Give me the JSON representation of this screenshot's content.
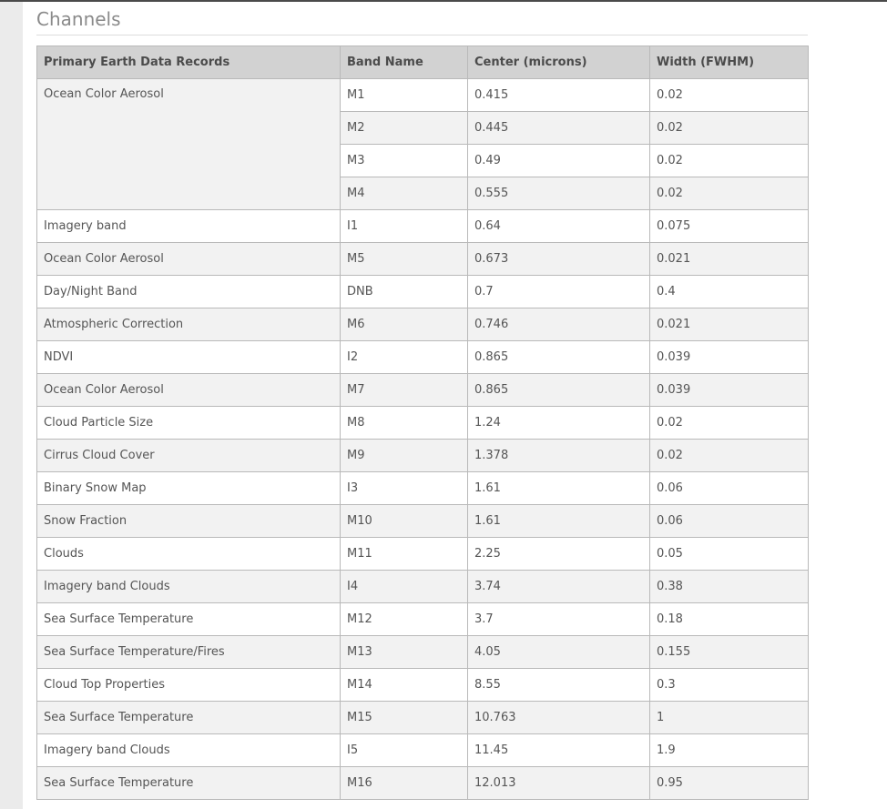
{
  "heading": "Channels",
  "table": {
    "headers": [
      "Primary Earth Data Records",
      "Band Name",
      "Center (microns)",
      "Width (FWHM)"
    ],
    "group": {
      "record": "Ocean Color Aerosol",
      "rows": [
        {
          "band": "M1",
          "center": "0.415",
          "width": "0.02"
        },
        {
          "band": "M2",
          "center": "0.445",
          "width": "0.02"
        },
        {
          "band": "M3",
          "center": "0.49",
          "width": "0.02"
        },
        {
          "band": "M4",
          "center": "0.555",
          "width": "0.02"
        }
      ]
    },
    "rows": [
      {
        "record": "Imagery band",
        "band": "I1",
        "center": "0.64",
        "width": "0.075"
      },
      {
        "record": "Ocean Color Aerosol",
        "band": "M5",
        "center": "0.673",
        "width": "0.021"
      },
      {
        "record": "Day/Night Band",
        "band": "DNB",
        "center": "0.7",
        "width": "0.4"
      },
      {
        "record": "Atmospheric Correction",
        "band": "M6",
        "center": "0.746",
        "width": "0.021"
      },
      {
        "record": "NDVI",
        "band": "I2",
        "center": "0.865",
        "width": "0.039"
      },
      {
        "record": "Ocean Color Aerosol",
        "band": "M7",
        "center": "0.865",
        "width": "0.039"
      },
      {
        "record": "Cloud Particle Size",
        "band": "M8",
        "center": "1.24",
        "width": "0.02"
      },
      {
        "record": "Cirrus Cloud Cover",
        "band": "M9",
        "center": "1.378",
        "width": "0.02"
      },
      {
        "record": "Binary Snow Map",
        "band": "I3",
        "center": "1.61",
        "width": "0.06"
      },
      {
        "record": "Snow Fraction",
        "band": "M10",
        "center": "1.61",
        "width": "0.06"
      },
      {
        "record": "Clouds",
        "band": "M11",
        "center": "2.25",
        "width": "0.05"
      },
      {
        "record": "Imagery band Clouds",
        "band": "I4",
        "center": "3.74",
        "width": "0.38"
      },
      {
        "record": "Sea Surface Temperature",
        "band": "M12",
        "center": "3.7",
        "width": "0.18"
      },
      {
        "record": "Sea Surface Temperature/Fires",
        "band": "M13",
        "center": "4.05",
        "width": "0.155"
      },
      {
        "record": "Cloud Top Properties",
        "band": "M14",
        "center": "8.55",
        "width": "0.3"
      },
      {
        "record": "Sea Surface Temperature",
        "band": "M15",
        "center": "10.763",
        "width": "1"
      },
      {
        "record": "Imagery band Clouds",
        "band": "I5",
        "center": "11.45",
        "width": "1.9"
      },
      {
        "record": "Sea Surface Temperature",
        "band": "M16",
        "center": "12.013",
        "width": "0.95"
      }
    ]
  }
}
